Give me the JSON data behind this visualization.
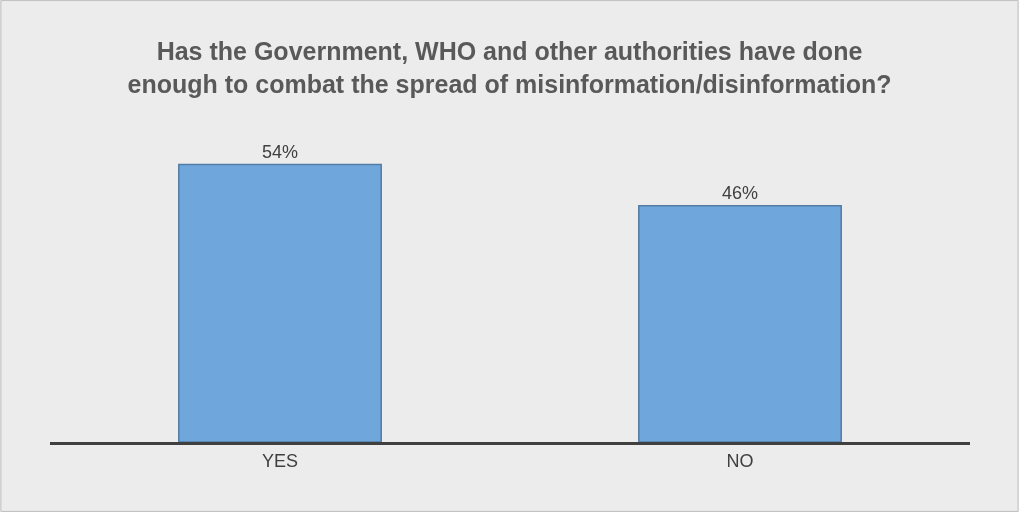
{
  "chart_data": {
    "type": "bar",
    "title": "Has the Government, WHO and other authorities have done\nenough to combat the spread of misinformation/disinformation?",
    "categories": [
      "YES",
      "NO"
    ],
    "values": [
      54,
      46
    ],
    "value_labels": [
      "54%",
      "46%"
    ],
    "color": "#6fa6dc",
    "tick_labels": "x"
  }
}
